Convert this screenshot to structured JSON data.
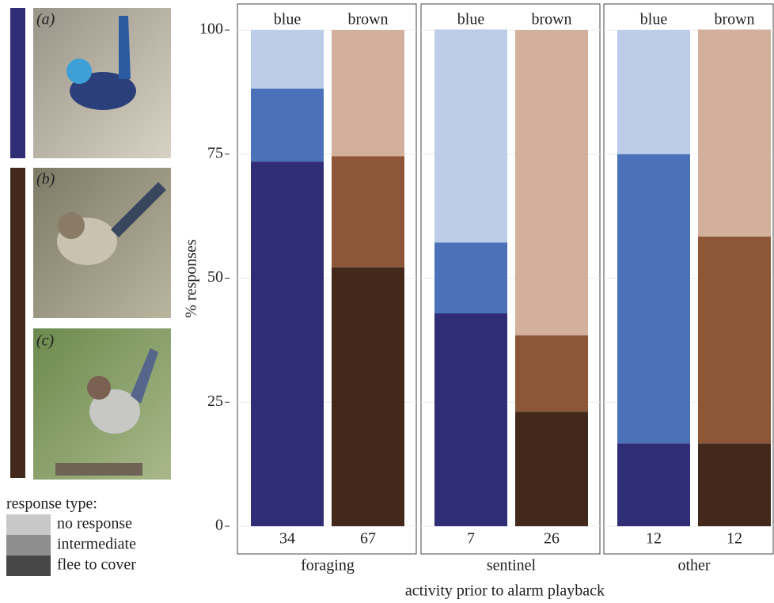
{
  "photo_panels": {
    "labels": [
      "(a)",
      "(b)",
      "(c)"
    ]
  },
  "chart_data": {
    "type": "stacked_bar",
    "y_label": "% responses",
    "x_label": "activity prior to alarm playback",
    "ylim": [
      0,
      100
    ],
    "yticks": [
      0,
      25,
      50,
      75,
      100
    ],
    "grid": true,
    "legend_title": "response type:",
    "series": [
      {
        "name": "flee to cover",
        "color": "#474747",
        "bar_colors": [
          "#2e2d76",
          "#42291c"
        ]
      },
      {
        "name": "intermediate",
        "color": "#8e8e8e",
        "bar_colors": [
          "#4b72b8",
          "#8d5637"
        ]
      },
      {
        "name": "no response",
        "color": "#c8c8c8",
        "bar_colors": [
          "#bccce9",
          "#d2b09c"
        ]
      }
    ],
    "facets": [
      {
        "name": "foraging",
        "categories": [
          "blue",
          "brown"
        ],
        "n": [
          34,
          67
        ],
        "values": [
          [
            73.5,
            52.2
          ],
          [
            14.7,
            22.4
          ],
          [
            11.8,
            25.4
          ]
        ]
      },
      {
        "name": "sentinel",
        "categories": [
          "blue",
          "brown"
        ],
        "n": [
          7,
          26
        ],
        "values": [
          [
            42.9,
            23.1
          ],
          [
            14.3,
            15.4
          ],
          [
            42.9,
            61.5
          ]
        ]
      },
      {
        "name": "other",
        "categories": [
          "blue",
          "brown"
        ],
        "n": [
          12,
          12
        ],
        "values": [
          [
            16.7,
            16.7
          ],
          [
            58.3,
            41.7
          ],
          [
            25,
            41.7
          ]
        ]
      }
    ]
  }
}
